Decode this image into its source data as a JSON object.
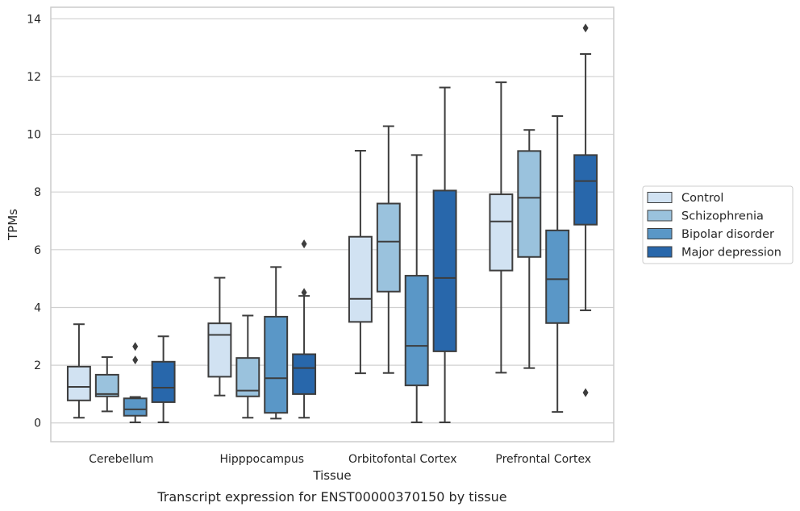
{
  "chart_data": {
    "type": "box",
    "caption": "Transcript expression for ENST00000370150 by tissue",
    "xlabel": "Tissue",
    "ylabel": "TPMs",
    "ylim": [
      -0.65,
      14.4
    ],
    "yticks": [
      0,
      2,
      4,
      6,
      8,
      10,
      12,
      14
    ],
    "grid": true,
    "legend_position": "right",
    "categories": [
      "Cerebellum",
      "Hipppocampus",
      "Orbitofontal Cortex",
      "Prefrontal Cortex"
    ],
    "series": [
      {
        "name": "Control",
        "color": "#d1e2f2",
        "boxes": [
          {
            "whislo": 0.18,
            "q1": 0.78,
            "med": 1.25,
            "q3": 1.95,
            "whishi": 3.42,
            "fliers": []
          },
          {
            "whislo": 0.95,
            "q1": 1.6,
            "med": 3.05,
            "q3": 3.45,
            "whishi": 5.03,
            "fliers": []
          },
          {
            "whislo": 1.72,
            "q1": 3.5,
            "med": 4.3,
            "q3": 6.45,
            "whishi": 9.43,
            "fliers": []
          },
          {
            "whislo": 1.74,
            "q1": 5.28,
            "med": 6.98,
            "q3": 7.92,
            "whishi": 11.8,
            "fliers": []
          }
        ]
      },
      {
        "name": "Schizophrenia",
        "color": "#9ac2dd",
        "boxes": [
          {
            "whislo": 0.4,
            "q1": 0.92,
            "med": 1.0,
            "q3": 1.67,
            "whishi": 2.28,
            "fliers": []
          },
          {
            "whislo": 0.18,
            "q1": 0.92,
            "med": 1.12,
            "q3": 2.25,
            "whishi": 3.72,
            "fliers": []
          },
          {
            "whislo": 1.73,
            "q1": 4.55,
            "med": 6.28,
            "q3": 7.6,
            "whishi": 10.28,
            "fliers": []
          },
          {
            "whislo": 1.9,
            "q1": 5.75,
            "med": 7.8,
            "q3": 9.42,
            "whishi": 10.15,
            "fliers": []
          }
        ]
      },
      {
        "name": "Bipolar disorder",
        "color": "#5a97c7",
        "boxes": [
          {
            "whislo": 0.02,
            "q1": 0.25,
            "med": 0.47,
            "q3": 0.85,
            "whishi": 0.9,
            "fliers": [
              2.18,
              2.65
            ]
          },
          {
            "whislo": 0.15,
            "q1": 0.35,
            "med": 1.55,
            "q3": 3.68,
            "whishi": 5.4,
            "fliers": []
          },
          {
            "whislo": 0.02,
            "q1": 1.3,
            "med": 2.67,
            "q3": 5.1,
            "whishi": 9.28,
            "fliers": []
          },
          {
            "whislo": 0.38,
            "q1": 3.46,
            "med": 4.98,
            "q3": 6.67,
            "whishi": 10.63,
            "fliers": []
          }
        ]
      },
      {
        "name": "Major depression",
        "color": "#2867ab",
        "boxes": [
          {
            "whislo": 0.02,
            "q1": 0.72,
            "med": 1.22,
            "q3": 2.12,
            "whishi": 3.0,
            "fliers": []
          },
          {
            "whislo": 0.18,
            "q1": 1.0,
            "med": 1.9,
            "q3": 2.38,
            "whishi": 4.4,
            "fliers": [
              4.52,
              6.2
            ]
          },
          {
            "whislo": 0.02,
            "q1": 2.48,
            "med": 5.02,
            "q3": 8.05,
            "whishi": 11.62,
            "fliers": []
          },
          {
            "whislo": 3.9,
            "q1": 6.87,
            "med": 8.38,
            "q3": 9.28,
            "whishi": 12.78,
            "fliers": [
              1.05,
              13.68
            ]
          }
        ]
      }
    ]
  }
}
